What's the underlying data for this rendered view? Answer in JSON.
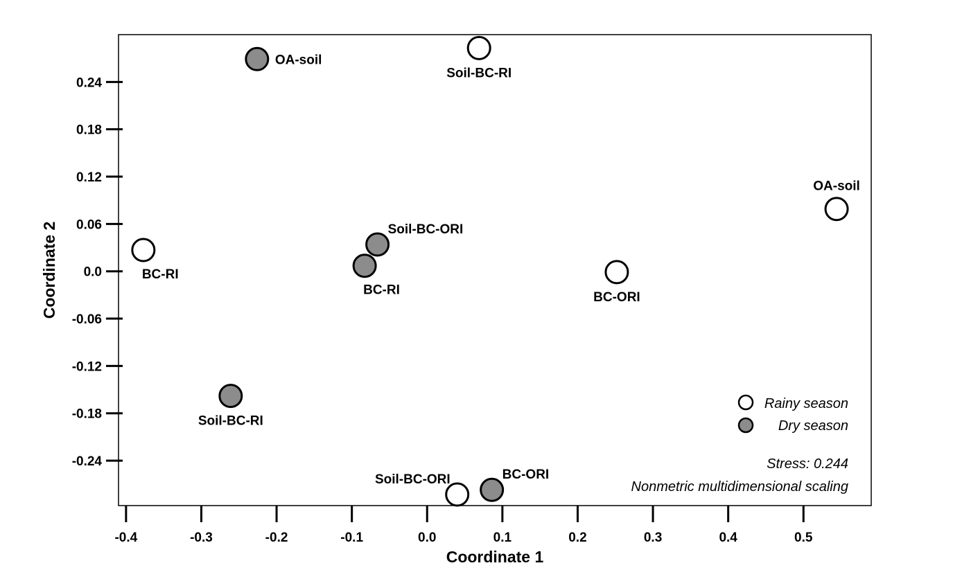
{
  "chart_data": {
    "type": "scatter",
    "title": "",
    "xlabel": "Coordinate 1",
    "ylabel": "Coordinate 2",
    "xlim": [
      -0.41,
      0.59
    ],
    "ylim": [
      -0.297,
      0.3
    ],
    "grid": false,
    "x_ticks": [
      {
        "value": -0.4,
        "label": "-0.4"
      },
      {
        "value": -0.3,
        "label": "-0.3"
      },
      {
        "value": -0.2,
        "label": "-0.2"
      },
      {
        "value": -0.1,
        "label": "-0.1"
      },
      {
        "value": 0.0,
        "label": "0.0"
      },
      {
        "value": 0.1,
        "label": "0.1"
      },
      {
        "value": 0.2,
        "label": "0.2"
      },
      {
        "value": 0.3,
        "label": "0.3"
      },
      {
        "value": 0.4,
        "label": "0.4"
      },
      {
        "value": 0.5,
        "label": "0.5"
      }
    ],
    "y_ticks": [
      {
        "value": 0.24,
        "label": "0.24"
      },
      {
        "value": 0.18,
        "label": "0.18"
      },
      {
        "value": 0.12,
        "label": "0.12"
      },
      {
        "value": 0.06,
        "label": "0.06"
      },
      {
        "value": 0.0,
        "label": "0.0"
      },
      {
        "value": -0.06,
        "label": "-0.06"
      },
      {
        "value": -0.12,
        "label": "-0.12"
      },
      {
        "value": -0.18,
        "label": "-0.18"
      },
      {
        "value": -0.24,
        "label": "-0.24"
      }
    ],
    "series": [
      {
        "name": "Rainy season",
        "fill": "#ffffff",
        "points": [
          {
            "label": "Soil-BC-RI",
            "x": 0.069,
            "y": 0.283,
            "label_pos": "below"
          },
          {
            "label": "OA-soil",
            "x": 0.544,
            "y": 0.079,
            "label_pos": "above"
          },
          {
            "label": "BC-RI",
            "x": -0.377,
            "y": 0.027,
            "label_pos": "below-right"
          },
          {
            "label": "BC-ORI",
            "x": 0.252,
            "y": -0.001,
            "label_pos": "below"
          },
          {
            "label": "Soil-BC-ORI",
            "x": 0.04,
            "y": -0.283,
            "label_pos": "above-left"
          }
        ]
      },
      {
        "name": "Dry season",
        "fill": "#8c8c8c",
        "points": [
          {
            "label": "OA-soil",
            "x": -0.226,
            "y": 0.269,
            "label_pos": "right"
          },
          {
            "label": "Soil-BC-ORI",
            "x": -0.066,
            "y": 0.034,
            "label_pos": "above-right"
          },
          {
            "label": "BC-RI",
            "x": -0.083,
            "y": 0.007,
            "label_pos": "below-right"
          },
          {
            "label": "Soil-BC-RI",
            "x": -0.261,
            "y": -0.158,
            "label_pos": "below"
          },
          {
            "label": "BC-ORI",
            "x": 0.086,
            "y": -0.277,
            "label_pos": "above-right"
          }
        ]
      }
    ],
    "legend": {
      "position": "bottom-right",
      "entries": [
        {
          "name": "Rainy season",
          "fill": "#ffffff"
        },
        {
          "name": "Dry season",
          "fill": "#8c8c8c"
        }
      ]
    },
    "annotations": [
      "Stress: 0.244",
      "Nonmetric multidimensional scaling"
    ]
  }
}
